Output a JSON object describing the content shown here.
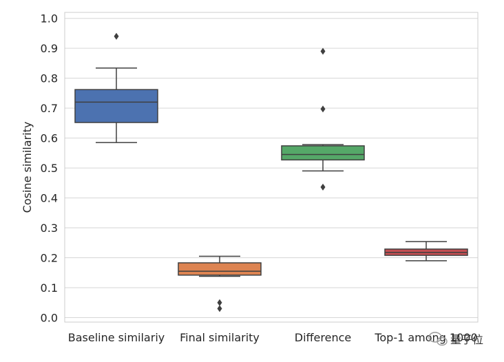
{
  "chart_data": {
    "type": "box",
    "ylabel": "Cosine similarity",
    "xlabel": "",
    "ylim": [
      -0.015,
      1.02
    ],
    "yticks": [
      0.0,
      0.1,
      0.2,
      0.3,
      0.4,
      0.5,
      0.6,
      0.7,
      0.8,
      0.9,
      1.0
    ],
    "ytick_labels": [
      "0.0",
      "0.1",
      "0.2",
      "0.3",
      "0.4",
      "0.5",
      "0.6",
      "0.7",
      "0.8",
      "0.9",
      "1.0"
    ],
    "grid": "horizontal",
    "categories": [
      "Baseline similariy",
      "Final similarity",
      "Difference",
      "Top-1 among 1000"
    ],
    "boxes": [
      {
        "category": "Baseline similariy",
        "color": "#4c72b0",
        "whisker_low": 0.585,
        "q1": 0.652,
        "median": 0.72,
        "q3": 0.762,
        "whisker_high": 0.834,
        "outliers": [
          0.94
        ]
      },
      {
        "category": "Final similarity",
        "color": "#dd8452",
        "whisker_low": 0.138,
        "q1": 0.142,
        "median": 0.155,
        "q3": 0.183,
        "whisker_high": 0.205,
        "outliers": [
          0.05,
          0.03
        ]
      },
      {
        "category": "Difference",
        "color": "#55a868",
        "whisker_low": 0.49,
        "q1": 0.527,
        "median": 0.545,
        "q3": 0.574,
        "whisker_high": 0.578,
        "outliers": [
          0.89,
          0.697,
          0.436
        ]
      },
      {
        "category": "Top-1 among 1000",
        "color": "#c44e52",
        "whisker_low": 0.19,
        "q1": 0.208,
        "median": 0.218,
        "q3": 0.229,
        "whisker_high": 0.254,
        "outliers": []
      }
    ]
  },
  "watermark": {
    "text": "量子位",
    "icon": "wechat-icon"
  },
  "colors": {
    "grid": "#d6d6d6",
    "box_edge": "#3f3f3f",
    "frame": "#cccccc",
    "watermark_icon": "#9a9a9a"
  }
}
